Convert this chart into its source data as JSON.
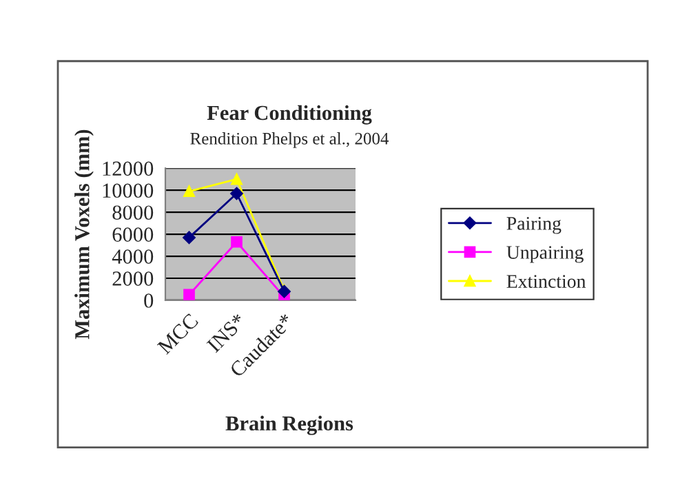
{
  "chart_data": {
    "type": "line",
    "title": "Fear Conditioning",
    "subtitle": "Rendition Phelps et al., 2004",
    "xlabel": "Brain Regions",
    "ylabel": "Maximum Voxels (mm)",
    "categories": [
      "MCC",
      "INS*",
      "Caudate*",
      null
    ],
    "series": [
      {
        "name": "Pairing",
        "color": "#000080",
        "marker": "diamond",
        "values": [
          5700,
          9700,
          800,
          null
        ]
      },
      {
        "name": "Unpairing",
        "color": "#ff00ff",
        "marker": "square",
        "values": [
          500,
          5300,
          300,
          null
        ]
      },
      {
        "name": "Extinction",
        "color": "#ffff00",
        "marker": "triangle",
        "values": [
          9900,
          11000,
          900,
          null
        ]
      }
    ],
    "ylim": [
      0,
      12000
    ],
    "yticks": [
      0,
      2000,
      4000,
      6000,
      8000,
      10000,
      12000
    ],
    "grid": "y",
    "legend": "right"
  }
}
